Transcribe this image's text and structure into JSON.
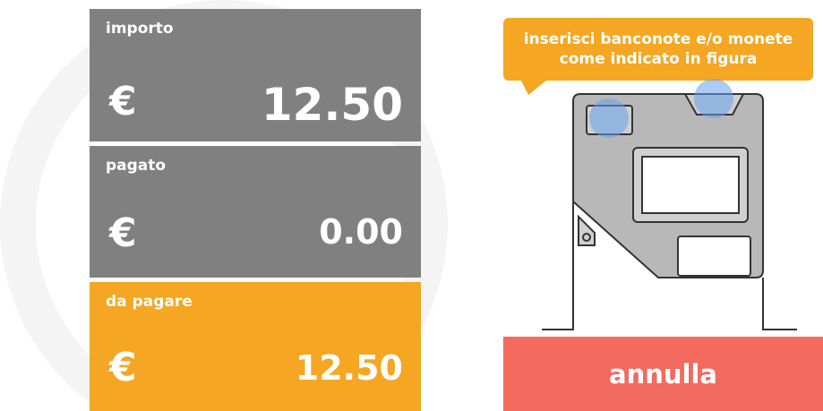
{
  "panels": [
    {
      "label": "importo",
      "currency": "€",
      "amount": "12.50"
    },
    {
      "label": "pagato",
      "currency": "€",
      "amount": "0.00"
    },
    {
      "label": "da pagare",
      "currency": "€",
      "amount": "12.50"
    }
  ],
  "instruction": {
    "lines": [
      "inserisci banconote e/o monete",
      "come indicato in figura"
    ]
  },
  "cancel_button": {
    "label": "annulla"
  }
}
